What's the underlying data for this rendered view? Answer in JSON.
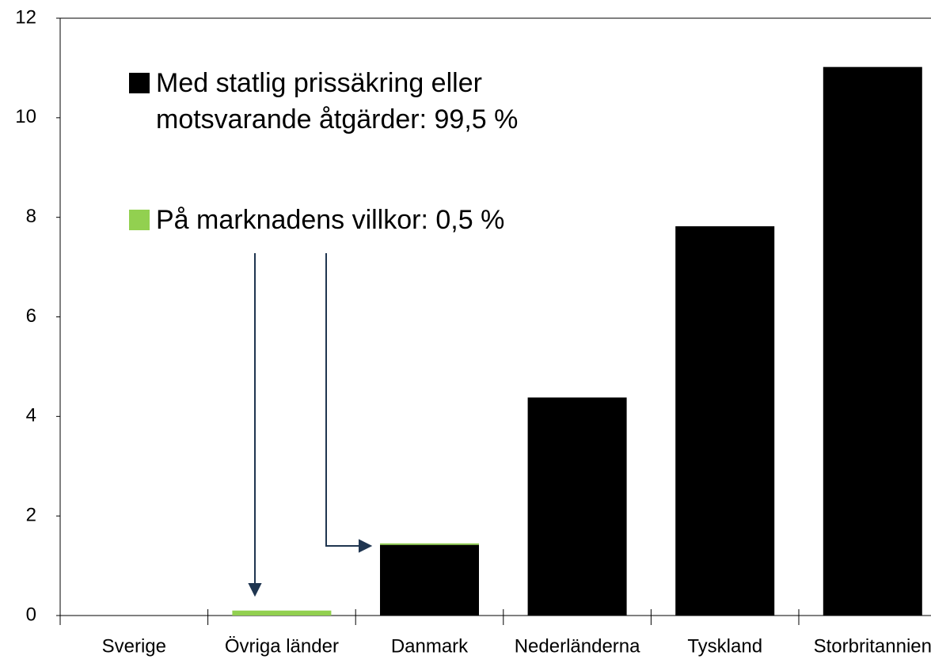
{
  "chart_data": {
    "type": "stacked_bar",
    "categories": [
      "Sverige",
      "Övriga länder",
      "Danmark",
      "Nederländerna",
      "Tyskland",
      "Storbritannien"
    ],
    "series": [
      {
        "name": "Med statlig prissäkring eller motsvarande åtgärder: 99,5 %",
        "color": "#000000",
        "values": [
          0,
          0,
          1.42,
          4.38,
          7.82,
          11.02
        ]
      },
      {
        "name": "På marknadens villkor: 0,5 %",
        "color": "#92d050",
        "values": [
          0,
          0.1,
          0.03,
          0,
          0,
          0
        ]
      }
    ],
    "ylim": [
      0,
      12
    ],
    "yticks": [
      0,
      2,
      4,
      6,
      8,
      10,
      12
    ],
    "grid": false
  }
}
